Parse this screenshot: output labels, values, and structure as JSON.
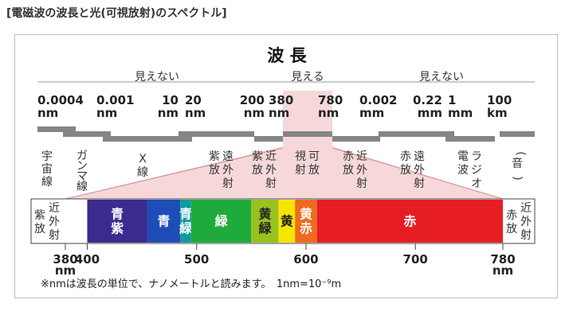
{
  "title": "[電磁波の波長と光(可視放射)のスペクトル]",
  "panel_title": "波 長",
  "visibility": {
    "invisible_left": "見えない",
    "visible": "見える",
    "invisible_right": "見えない"
  },
  "top_scale": {
    "ticks": [
      {
        "value": "0.0004",
        "unit": "nm"
      },
      {
        "value": "0.001",
        "unit": "nm"
      },
      {
        "value": "10",
        "unit": "nm"
      },
      {
        "value": "20",
        "unit": "nm"
      },
      {
        "value": "200",
        "unit": "nm"
      },
      {
        "value": "380",
        "unit": "nm"
      },
      {
        "value": "780",
        "unit": "nm"
      },
      {
        "value": "0.002",
        "unit": "mm"
      },
      {
        "value": "0.22",
        "unit": "mm"
      },
      {
        "value": "1",
        "unit": "mm"
      },
      {
        "value": "100",
        "unit": "km"
      }
    ]
  },
  "bands": [
    {
      "label": "宇宙線"
    },
    {
      "label": "ガンマ線"
    },
    {
      "label": "X線"
    },
    {
      "label": "遠紫外放射"
    },
    {
      "label": "近紫外放射"
    },
    {
      "label": "可視放射"
    },
    {
      "label": "近赤外放射"
    },
    {
      "label": "遠赤外放射"
    },
    {
      "label": "電波ラジオ"
    },
    {
      "label": "(音)"
    }
  ],
  "spectrum": {
    "left_label": "近紫外放射",
    "right_label": "近赤外放射",
    "segments": [
      {
        "name": "青紫",
        "from": 400,
        "to": 455,
        "color": "#3b2b8e",
        "text_color": "#ffffff"
      },
      {
        "name": "青",
        "from": 455,
        "to": 485,
        "color": "#1f4db8",
        "text_color": "#ffffff"
      },
      {
        "name": "青緑",
        "from": 485,
        "to": 495,
        "color": "#119a9f",
        "text_color": "#ffffff"
      },
      {
        "name": "緑",
        "from": 495,
        "to": 550,
        "color": "#1eab3c",
        "text_color": "#ffffff"
      },
      {
        "name": "黄緑",
        "from": 550,
        "to": 575,
        "color": "#98c21f",
        "text_color": "#222222"
      },
      {
        "name": "黄",
        "from": 575,
        "to": 590,
        "color": "#f6e500",
        "text_color": "#222222"
      },
      {
        "name": "黄赤",
        "from": 590,
        "to": 610,
        "color": "#ef6a1e",
        "text_color": "#ffffff"
      },
      {
        "name": "赤",
        "from": 610,
        "to": 780,
        "color": "#e61e24",
        "text_color": "#ffffff"
      }
    ]
  },
  "bottom_scale": {
    "unit": "nm",
    "ticks": [
      "380",
      "400",
      "500",
      "600",
      "700",
      "780"
    ]
  },
  "footnote": "※nmは波長の単位で、ナノメートルと読みます。　1nm=10⁻⁹m",
  "colors": {
    "grey_bar": "#858585",
    "pink_shade": "#f6d8da",
    "uv_ir_bg": "#ffffff",
    "panel_border": "#bcbcbc"
  }
}
